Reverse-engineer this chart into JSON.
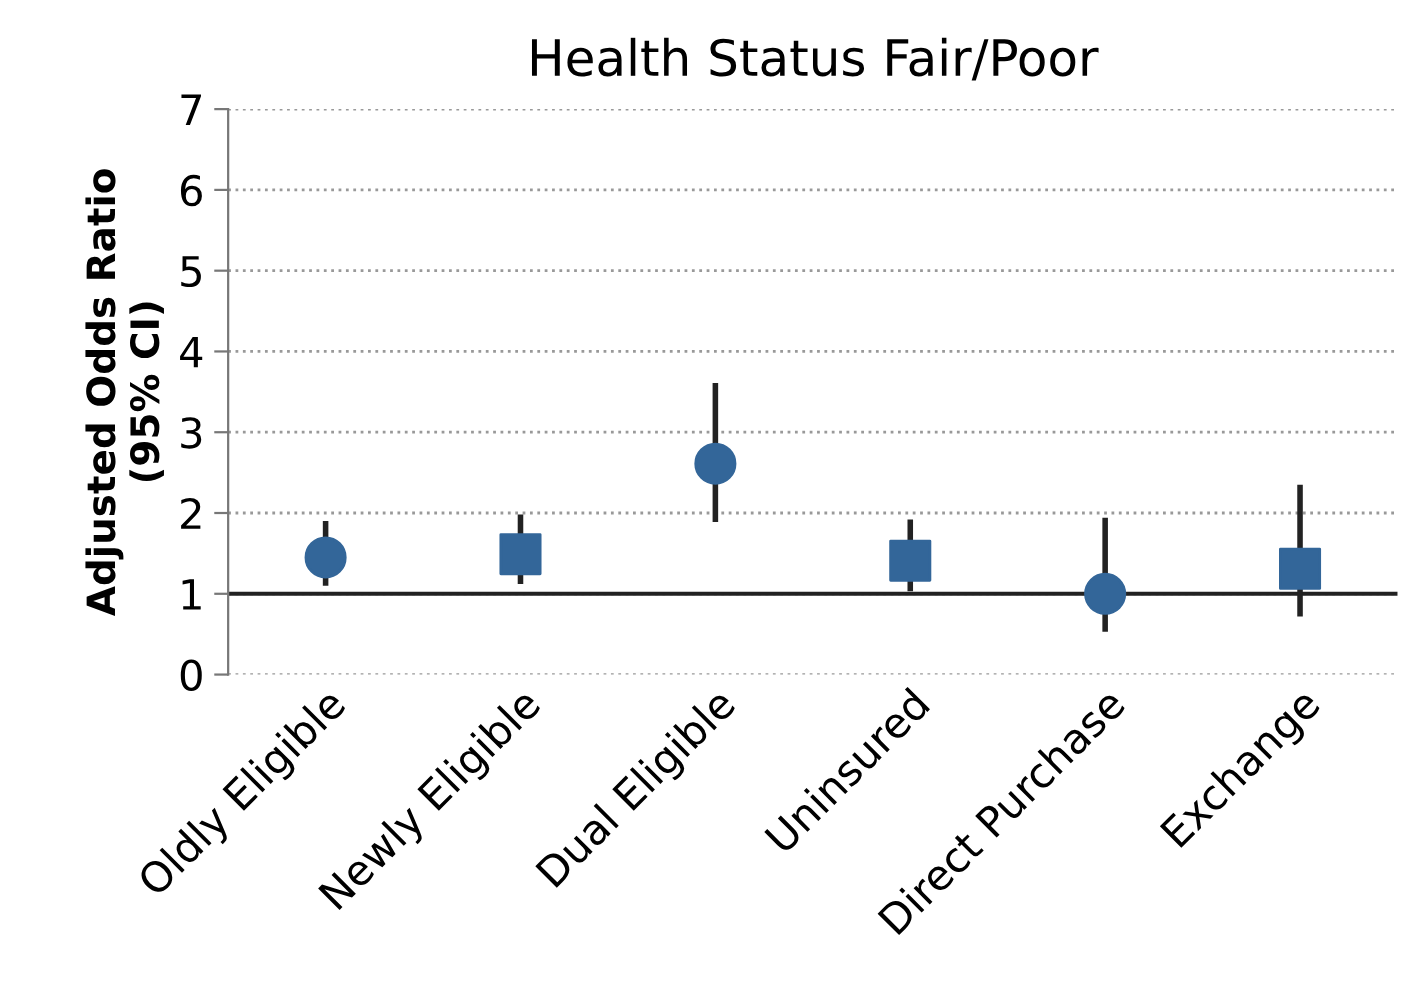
{
  "chart_data": {
    "type": "scatter",
    "title": "Health Status Fair/Poor",
    "ylabel": "Adjusted Odds Ratio\n(95% CI)",
    "categories": [
      "Oldly Eligible",
      "Newly Eligible",
      "Dual Eligible",
      "Uninsured",
      "Direct Purchase",
      "Exchange"
    ],
    "series": [
      {
        "color": "#336699",
        "marker": "circle",
        "values": [
          1.45,
          null,
          2.61,
          null,
          1.0,
          null
        ],
        "errors": [
          [
            1.1,
            1.9
          ],
          null,
          [
            1.89,
            3.61
          ],
          null,
          [
            0.53,
            1.94
          ],
          null
        ]
      },
      {
        "color": "#336699",
        "marker": "square",
        "values": [
          null,
          1.49,
          null,
          1.41,
          null,
          1.31
        ],
        "errors": [
          null,
          [
            1.12,
            1.98
          ],
          null,
          [
            1.03,
            1.92
          ],
          null,
          [
            0.72,
            2.35
          ]
        ]
      }
    ],
    "ylim": [
      0,
      7
    ],
    "yticks": [
      0,
      1,
      2,
      3,
      4,
      5,
      6,
      7
    ],
    "grid": "y",
    "ref_lines": [
      {
        "axis": "y",
        "value": 1,
        "color": "#222222",
        "line_style": "solid"
      }
    ]
  }
}
